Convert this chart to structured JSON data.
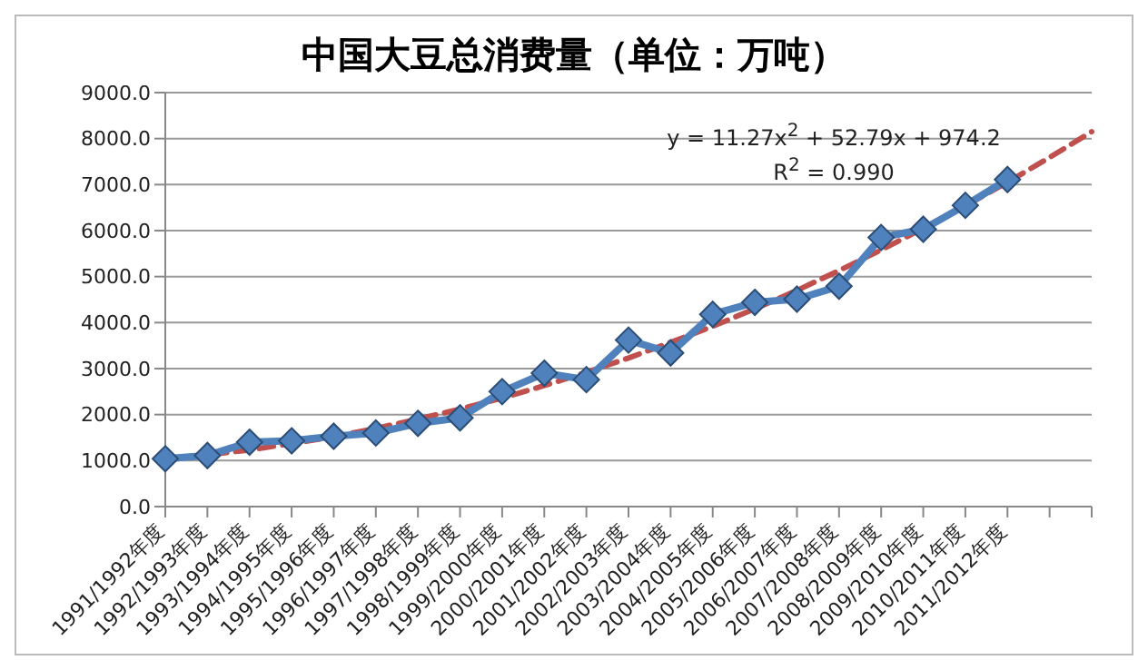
{
  "chart_data": {
    "type": "line",
    "title": "中国大豆总消费量（单位：万吨）",
    "categories": [
      "1991/1992年度",
      "1992/1993年度",
      "1993/1994年度",
      "1994/1995年度",
      "1995/1996年度",
      "1996/1997年度",
      "1997/1998年度",
      "1998/1999年度",
      "1999/2000年度",
      "2000/2001年度",
      "2001/2002年度",
      "2002/2003年度",
      "2003/2004年度",
      "2004/2005年度",
      "2005/2006年度",
      "2006/2007年度",
      "2007/2008年度",
      "2008/2009年度",
      "2009/2010年度",
      "2010/2011年度",
      "2011/2012年度",
      null,
      null
    ],
    "series": [
      {
        "color": "#4f81bd",
        "marker": "diamond",
        "values": [
          1040,
          1110,
          1400,
          1430,
          1530,
          1600,
          1810,
          1930,
          2500,
          2900,
          2760,
          3620,
          3340,
          4180,
          4440,
          4510,
          4790,
          5850,
          6030,
          6550,
          7110,
          null,
          null
        ]
      },
      {
        "type": "line",
        "color": "#c0504d",
        "marker": "none",
        "line_style": "dashed",
        "values": [
          1040,
          1130,
          1230,
          1370,
          1520,
          1700,
          1900,
          2120,
          2360,
          2630,
          2920,
          3230,
          3570,
          3920,
          4300,
          4700,
          5130,
          5580,
          6050,
          6540,
          7050,
          7590,
          8150
        ]
      }
    ],
    "ylim": [
      0,
      9000
    ],
    "yticks": [
      {
        "value": 0,
        "label": "0.0"
      },
      {
        "value": 1000,
        "label": "1000.0"
      },
      {
        "value": 2000,
        "label": "2000.0"
      },
      {
        "value": 3000,
        "label": "3000.0"
      },
      {
        "value": 4000,
        "label": "4000.0"
      },
      {
        "value": 5000,
        "label": "5000.0"
      },
      {
        "value": 6000,
        "label": "6000.0"
      },
      {
        "value": 7000,
        "label": "7000.0"
      },
      {
        "value": 8000,
        "label": "8000.0"
      },
      {
        "value": 9000,
        "label": "9000.0"
      }
    ],
    "grid": "y",
    "legend": false,
    "annotations": [
      "y = 11.27x$^{2}$ + 52.79x + 974.2",
      "R$^{2}$ = 0.990"
    ]
  }
}
